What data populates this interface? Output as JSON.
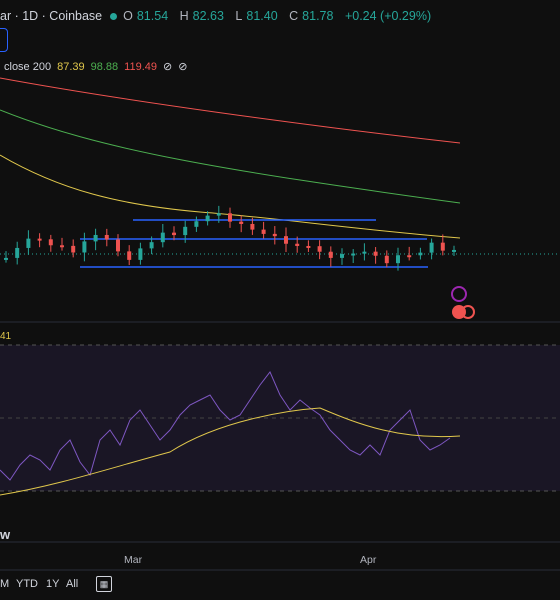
{
  "header": {
    "symbol": "ar · 1D · Coinbase",
    "open_label": "O",
    "open": "81.54",
    "high_label": "H",
    "high": "82.63",
    "low_label": "L",
    "low": "81.40",
    "close_label": "C",
    "close": "81.78",
    "change": "+0.24 (+0.29%)"
  },
  "indicator": {
    "label": "close 200",
    "v1": "87.39",
    "v2": "98.88",
    "v3": "119.49",
    "eye_icon": "eye-off-icon"
  },
  "rsi": {
    "value_label": "41"
  },
  "watermark": "w",
  "x_axis": {
    "mar": "Mar",
    "apr": "Apr"
  },
  "timeframes": {
    "m": "M",
    "ytd": "YTD",
    "y1": "1Y",
    "all": "All"
  },
  "colors": {
    "up": "#26a69a",
    "down": "#ef5350",
    "ma50": "#e0c74c",
    "ma100": "#4caf50",
    "ma200": "#ef5350",
    "rsi": "#7e57c2",
    "channel": "#2962ff"
  }
}
